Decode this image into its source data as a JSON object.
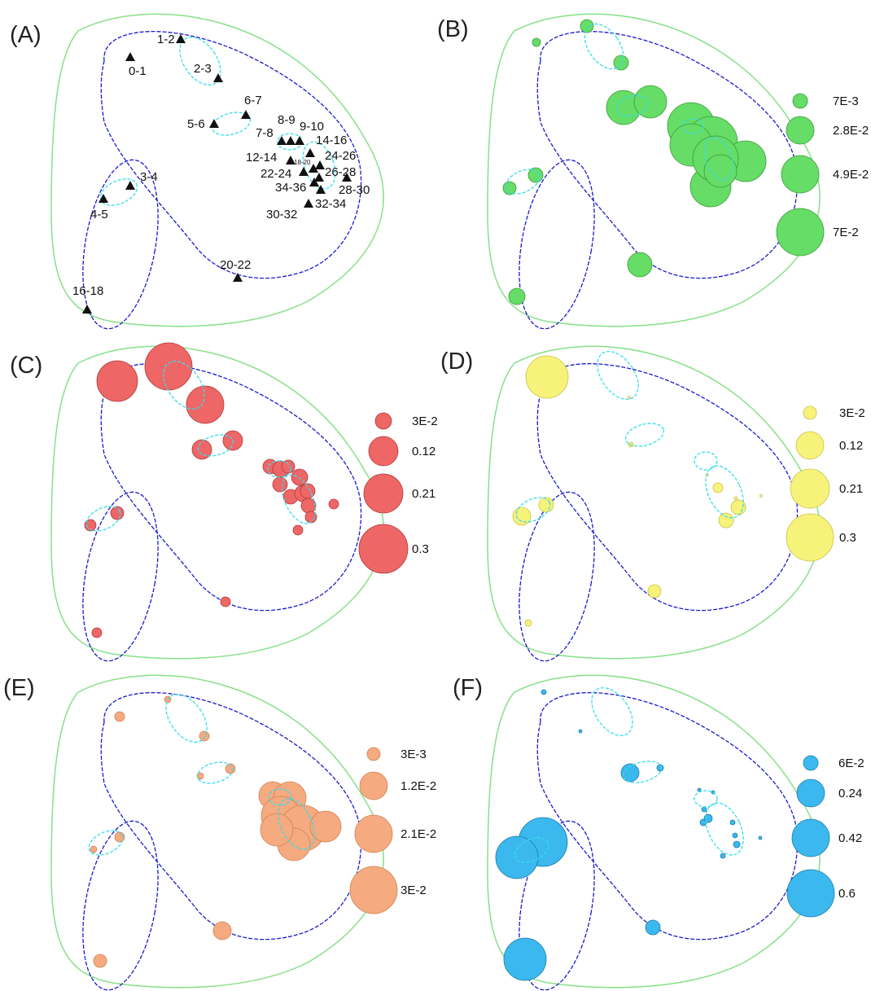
{
  "panels": [
    {
      "id": "A",
      "label": "(A)"
    },
    {
      "id": "B",
      "label": "(B)",
      "color": "#66dd66",
      "stroke": "#3a9a3a",
      "legend": [
        "7E-3",
        "2.8E-2",
        "4.9E-2",
        "7E-2"
      ]
    },
    {
      "id": "C",
      "label": "(C)",
      "color": "#ee6666",
      "stroke": "#b03a3a",
      "legend": [
        "3E-2",
        "0.12",
        "0.21",
        "0.3"
      ]
    },
    {
      "id": "D",
      "label": "(D)",
      "color": "#f7f27a",
      "stroke": "#c9c04a",
      "legend": [
        "3E-2",
        "0.12",
        "0.21",
        "0.3"
      ]
    },
    {
      "id": "E",
      "label": "(E)",
      "color": "#f5aa80",
      "stroke": "#d08050",
      "legend": [
        "3E-3",
        "1.2E-2",
        "2.1E-2",
        "3E-2"
      ]
    },
    {
      "id": "F",
      "label": "(F)",
      "color": "#3bb8ee",
      "stroke": "#1f7aa8",
      "legend": [
        "6E-2",
        "0.24",
        "0.42",
        "0.6"
      ]
    }
  ],
  "sites": [
    "0-1",
    "1-2",
    "2-3",
    "3-4",
    "4-5",
    "5-6",
    "6-7",
    "7-8",
    "8-9",
    "9-10",
    "12-14",
    "14-16",
    "16-18",
    "18-20",
    "20-22",
    "22-24",
    "24-26",
    "26-28",
    "28-30",
    "30-32",
    "32-34",
    "34-36"
  ],
  "colors": {
    "outer_hull": "#88e088",
    "group_ellipse": "#1a1acc",
    "cluster_ellipse": "#33ddee",
    "marker": "#111111"
  }
}
